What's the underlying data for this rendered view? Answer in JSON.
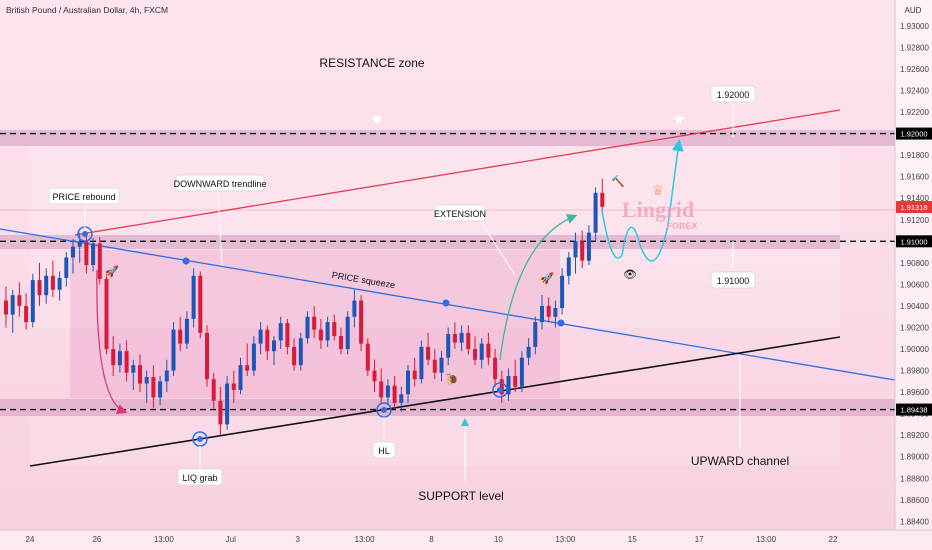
{
  "header": {
    "title": "British Pound / Australian Dollar, 4h, FXCM",
    "currency": "AUD"
  },
  "watermark": {
    "brand": "Lingrid",
    "sub": "FOREX"
  },
  "chart_data": {
    "type": "candlestick",
    "price_ticks": [
      "1.93000",
      "1.92800",
      "1.92600",
      "1.92400",
      "1.92200",
      "1.92000",
      "1.91800",
      "1.91600",
      "1.91400",
      "1.91200",
      "1.91000",
      "1.90800",
      "1.90600",
      "1.90400",
      "1.90200",
      "1.90000",
      "1.89800",
      "1.89600",
      "1.89400",
      "1.89200",
      "1.89000",
      "1.88800",
      "1.88600",
      "1.88400"
    ],
    "price_min": 1.8832,
    "price_max": 1.9324,
    "time_ticks": [
      "24",
      "26",
      "13:00",
      "Jul",
      "3",
      "13:00",
      "8",
      "10",
      "13:00",
      "15",
      "17",
      "13:00",
      "22"
    ],
    "badges": [
      {
        "label": "1.92000",
        "value": 1.92,
        "color": "#000000"
      },
      {
        "label": "1.91318",
        "value": 1.91318,
        "color": "#e53935"
      },
      {
        "label": "1.91000",
        "value": 1.91,
        "color": "#000000"
      },
      {
        "label": "1.89438",
        "value": 1.89438,
        "color": "#000000"
      }
    ],
    "levels": [
      {
        "value": 1.92,
        "style": "dashed",
        "label": "1.92000"
      },
      {
        "value": 1.91,
        "style": "dashed",
        "label": "1.91000"
      },
      {
        "value": 1.89438,
        "style": "dashed",
        "label": ""
      }
    ],
    "annotations": [
      "RESISTANCE zone",
      "PRICE rebound",
      "DOWNWARD trendline",
      "EXTENSION",
      "PRICE squeeze",
      "LIQ grab",
      "HL",
      "SUPPORT level",
      "UPWARD channel"
    ],
    "colors": {
      "up": "#1e56b8",
      "down": "#d81b3a",
      "resistance_line": "#e53950",
      "downtrend": "#2f6ee8",
      "uptrend": "#111111",
      "projection": "#2ec7dd",
      "extension": "#3cb99a"
    },
    "candles": [
      {
        "o": 1.9045,
        "h": 1.9058,
        "l": 1.902,
        "c": 1.9032
      },
      {
        "o": 1.9032,
        "h": 1.9055,
        "l": 1.9015,
        "c": 1.905
      },
      {
        "o": 1.905,
        "h": 1.9062,
        "l": 1.903,
        "c": 1.904
      },
      {
        "o": 1.904,
        "h": 1.9052,
        "l": 1.9018,
        "c": 1.9025
      },
      {
        "o": 1.9025,
        "h": 1.907,
        "l": 1.902,
        "c": 1.9064
      },
      {
        "o": 1.9064,
        "h": 1.908,
        "l": 1.904,
        "c": 1.905
      },
      {
        "o": 1.905,
        "h": 1.9075,
        "l": 1.9042,
        "c": 1.9068
      },
      {
        "o": 1.9068,
        "h": 1.9082,
        "l": 1.9048,
        "c": 1.9055
      },
      {
        "o": 1.9055,
        "h": 1.9072,
        "l": 1.9045,
        "c": 1.9066
      },
      {
        "o": 1.9066,
        "h": 1.909,
        "l": 1.9058,
        "c": 1.9085
      },
      {
        "o": 1.9085,
        "h": 1.9102,
        "l": 1.907,
        "c": 1.9095
      },
      {
        "o": 1.9095,
        "h": 1.9108,
        "l": 1.908,
        "c": 1.91
      },
      {
        "o": 1.91,
        "h": 1.9108,
        "l": 1.907,
        "c": 1.9078
      },
      {
        "o": 1.9078,
        "h": 1.9103,
        "l": 1.9072,
        "c": 1.9098
      },
      {
        "o": 1.9098,
        "h": 1.9104,
        "l": 1.906,
        "c": 1.9065
      },
      {
        "o": 1.9065,
        "h": 1.907,
        "l": 1.8995,
        "c": 1.9
      },
      {
        "o": 1.9,
        "h": 1.9012,
        "l": 1.8975,
        "c": 1.8985
      },
      {
        "o": 1.8985,
        "h": 1.9005,
        "l": 1.8978,
        "c": 1.8998
      },
      {
        "o": 1.8998,
        "h": 1.9008,
        "l": 1.897,
        "c": 1.8978
      },
      {
        "o": 1.8978,
        "h": 1.899,
        "l": 1.8962,
        "c": 1.8985
      },
      {
        "o": 1.8985,
        "h": 1.8995,
        "l": 1.896,
        "c": 1.8968
      },
      {
        "o": 1.8968,
        "h": 1.898,
        "l": 1.895,
        "c": 1.8974
      },
      {
        "o": 1.8974,
        "h": 1.8985,
        "l": 1.8945,
        "c": 1.8955
      },
      {
        "o": 1.8955,
        "h": 1.8975,
        "l": 1.8948,
        "c": 1.897
      },
      {
        "o": 1.897,
        "h": 1.899,
        "l": 1.896,
        "c": 1.898
      },
      {
        "o": 1.898,
        "h": 1.9025,
        "l": 1.8975,
        "c": 1.9018
      },
      {
        "o": 1.9018,
        "h": 1.903,
        "l": 1.8998,
        "c": 1.9005
      },
      {
        "o": 1.9005,
        "h": 1.9035,
        "l": 1.9,
        "c": 1.9028
      },
      {
        "o": 1.9028,
        "h": 1.9075,
        "l": 1.902,
        "c": 1.9068
      },
      {
        "o": 1.9068,
        "h": 1.9072,
        "l": 1.901,
        "c": 1.9015
      },
      {
        "o": 1.9015,
        "h": 1.9022,
        "l": 1.8965,
        "c": 1.8972
      },
      {
        "o": 1.8972,
        "h": 1.8978,
        "l": 1.8945,
        "c": 1.8952
      },
      {
        "o": 1.8952,
        "h": 1.8965,
        "l": 1.892,
        "c": 1.893
      },
      {
        "o": 1.893,
        "h": 1.8975,
        "l": 1.8925,
        "c": 1.8968
      },
      {
        "o": 1.8968,
        "h": 1.898,
        "l": 1.895,
        "c": 1.8962
      },
      {
        "o": 1.8962,
        "h": 1.8992,
        "l": 1.8958,
        "c": 1.8985
      },
      {
        "o": 1.8985,
        "h": 1.9005,
        "l": 1.8975,
        "c": 1.898
      },
      {
        "o": 1.898,
        "h": 1.9012,
        "l": 1.8975,
        "c": 1.9005
      },
      {
        "o": 1.9005,
        "h": 1.9025,
        "l": 1.8995,
        "c": 1.9018
      },
      {
        "o": 1.9018,
        "h": 1.9022,
        "l": 1.899,
        "c": 1.8998
      },
      {
        "o": 1.8998,
        "h": 1.9012,
        "l": 1.8985,
        "c": 1.9008
      },
      {
        "o": 1.9008,
        "h": 1.903,
        "l": 1.9,
        "c": 1.9024
      },
      {
        "o": 1.9024,
        "h": 1.9028,
        "l": 1.8995,
        "c": 1.9002
      },
      {
        "o": 1.9002,
        "h": 1.901,
        "l": 1.898,
        "c": 1.8985
      },
      {
        "o": 1.8985,
        "h": 1.9015,
        "l": 1.898,
        "c": 1.901
      },
      {
        "o": 1.901,
        "h": 1.9035,
        "l": 1.9005,
        "c": 1.903
      },
      {
        "o": 1.903,
        "h": 1.904,
        "l": 1.901,
        "c": 1.9018
      },
      {
        "o": 1.9018,
        "h": 1.9028,
        "l": 1.9,
        "c": 1.9008
      },
      {
        "o": 1.9008,
        "h": 1.903,
        "l": 1.9002,
        "c": 1.9025
      },
      {
        "o": 1.9025,
        "h": 1.9032,
        "l": 1.9008,
        "c": 1.9012
      },
      {
        "o": 1.9012,
        "h": 1.902,
        "l": 1.8995,
        "c": 1.9
      },
      {
        "o": 1.9,
        "h": 1.9035,
        "l": 1.8995,
        "c": 1.903
      },
      {
        "o": 1.903,
        "h": 1.9055,
        "l": 1.902,
        "c": 1.9045
      },
      {
        "o": 1.9045,
        "h": 1.905,
        "l": 1.8998,
        "c": 1.9005
      },
      {
        "o": 1.9005,
        "h": 1.901,
        "l": 1.8975,
        "c": 1.898
      },
      {
        "o": 1.898,
        "h": 1.899,
        "l": 1.896,
        "c": 1.897
      },
      {
        "o": 1.897,
        "h": 1.8982,
        "l": 1.895,
        "c": 1.8955
      },
      {
        "o": 1.8955,
        "h": 1.8972,
        "l": 1.8948,
        "c": 1.8966
      },
      {
        "o": 1.8966,
        "h": 1.8975,
        "l": 1.8945,
        "c": 1.895
      },
      {
        "o": 1.895,
        "h": 1.8965,
        "l": 1.8942,
        "c": 1.8958
      },
      {
        "o": 1.8958,
        "h": 1.8985,
        "l": 1.895,
        "c": 1.898
      },
      {
        "o": 1.898,
        "h": 1.8992,
        "l": 1.8965,
        "c": 1.8972
      },
      {
        "o": 1.8972,
        "h": 1.9008,
        "l": 1.8968,
        "c": 1.9002
      },
      {
        "o": 1.9002,
        "h": 1.9015,
        "l": 1.8985,
        "c": 1.899
      },
      {
        "o": 1.899,
        "h": 1.9,
        "l": 1.8972,
        "c": 1.8978
      },
      {
        "o": 1.8978,
        "h": 1.8998,
        "l": 1.897,
        "c": 1.8992
      },
      {
        "o": 1.8992,
        "h": 1.902,
        "l": 1.8985,
        "c": 1.9014
      },
      {
        "o": 1.9014,
        "h": 1.9025,
        "l": 1.9,
        "c": 1.9006
      },
      {
        "o": 1.9006,
        "h": 1.9022,
        "l": 1.8998,
        "c": 1.9015
      },
      {
        "o": 1.9015,
        "h": 1.9022,
        "l": 1.8995,
        "c": 1.9
      },
      {
        "o": 1.9,
        "h": 1.9012,
        "l": 1.8985,
        "c": 1.899
      },
      {
        "o": 1.899,
        "h": 1.901,
        "l": 1.8982,
        "c": 1.9005
      },
      {
        "o": 1.9005,
        "h": 1.9015,
        "l": 1.8985,
        "c": 1.8992
      },
      {
        "o": 1.8992,
        "h": 1.9,
        "l": 1.8965,
        "c": 1.8972
      },
      {
        "o": 1.8972,
        "h": 1.898,
        "l": 1.895,
        "c": 1.8958
      },
      {
        "o": 1.8958,
        "h": 1.8982,
        "l": 1.8952,
        "c": 1.8975
      },
      {
        "o": 1.8975,
        "h": 1.899,
        "l": 1.896,
        "c": 1.8965
      },
      {
        "o": 1.8965,
        "h": 1.8998,
        "l": 1.896,
        "c": 1.8992
      },
      {
        "o": 1.8992,
        "h": 1.901,
        "l": 1.8985,
        "c": 1.9002
      },
      {
        "o": 1.9002,
        "h": 1.903,
        "l": 1.8995,
        "c": 1.9025
      },
      {
        "o": 1.9025,
        "h": 1.905,
        "l": 1.9018,
        "c": 1.904
      },
      {
        "o": 1.904,
        "h": 1.9048,
        "l": 1.9025,
        "c": 1.903
      },
      {
        "o": 1.903,
        "h": 1.9045,
        "l": 1.902,
        "c": 1.9038
      },
      {
        "o": 1.9038,
        "h": 1.9075,
        "l": 1.9032,
        "c": 1.9068
      },
      {
        "o": 1.9068,
        "h": 1.909,
        "l": 1.906,
        "c": 1.9085
      },
      {
        "o": 1.9085,
        "h": 1.9108,
        "l": 1.907,
        "c": 1.91
      },
      {
        "o": 1.91,
        "h": 1.911,
        "l": 1.9075,
        "c": 1.9082
      },
      {
        "o": 1.9082,
        "h": 1.9115,
        "l": 1.9078,
        "c": 1.9108
      },
      {
        "o": 1.9108,
        "h": 1.915,
        "l": 1.91,
        "c": 1.9145
      },
      {
        "o": 1.9145,
        "h": 1.9158,
        "l": 1.9125,
        "c": 1.9132
      }
    ]
  }
}
